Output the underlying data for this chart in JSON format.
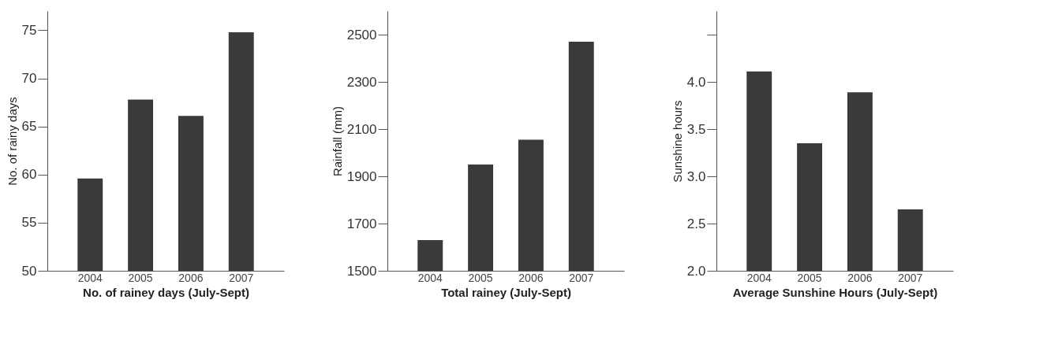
{
  "chart_data": [
    {
      "type": "bar",
      "xlabel": "No. of rainey days (July-Sept)",
      "ylabel": "No. of rainy days",
      "categories": [
        "2004",
        "2005",
        "2006",
        "2007"
      ],
      "values": [
        59.6,
        67.8,
        66.1,
        74.8
      ],
      "color": "#3a3a3a",
      "ylim": [
        50,
        77
      ],
      "yticks": [
        50,
        55,
        60,
        65,
        70,
        75
      ]
    },
    {
      "type": "bar",
      "xlabel": "Total rainey  (July-Sept)",
      "ylabel": "Rainfall (mm)",
      "categories": [
        "2004",
        "2005",
        "2006",
        "2007"
      ],
      "values": [
        1630,
        1950,
        2055,
        2470
      ],
      "color": "#3a3a3a",
      "ylim": [
        1500,
        2600
      ],
      "yticks": [
        1500,
        1700,
        1900,
        2100,
        2300,
        2500
      ]
    },
    {
      "type": "bar",
      "xlabel": "Average Sunshine Hours (July-Sept)",
      "ylabel": "Sunshine hours",
      "categories": [
        "2004",
        "2005",
        "2006",
        "2007"
      ],
      "values": [
        4.11,
        3.35,
        3.89,
        2.65
      ],
      "color": "#3a3a3a",
      "ylim": [
        2.0,
        4.75
      ],
      "yticks": [
        {
          "value": 2,
          "label": "2.0"
        },
        2.5,
        {
          "value": 3,
          "label": "3.0"
        },
        3.5,
        {
          "value": 4,
          "label": "4.0"
        },
        {
          "value": 4.5,
          "label": null
        }
      ]
    }
  ]
}
